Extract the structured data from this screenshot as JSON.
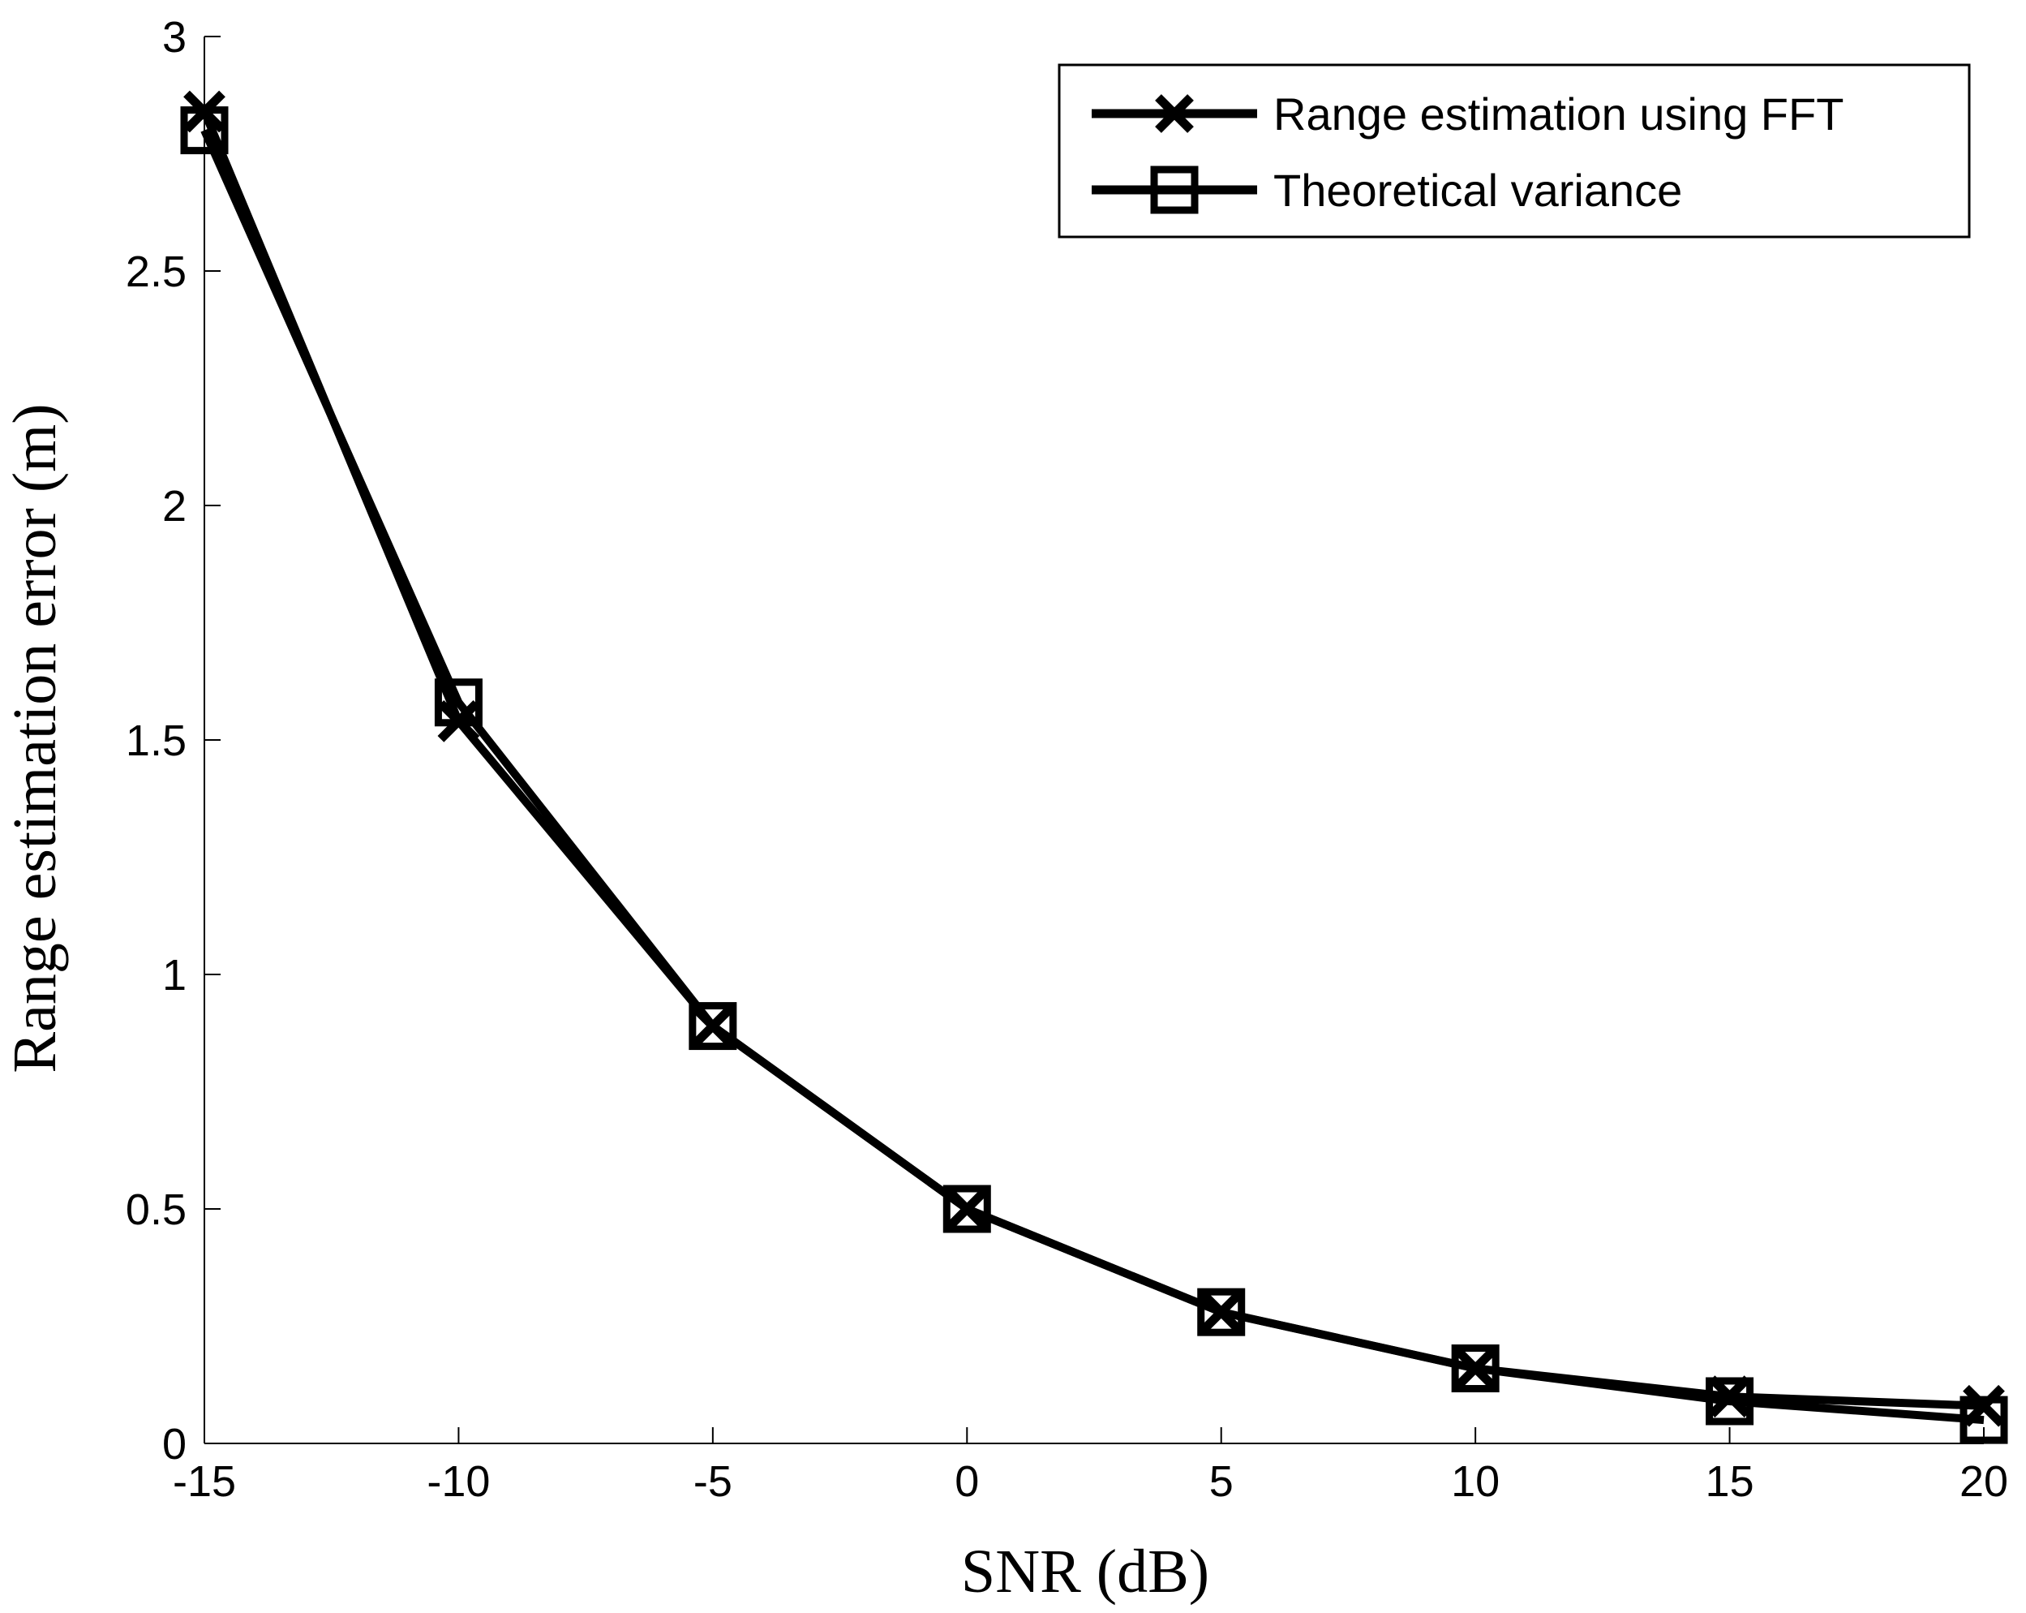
{
  "chart_data": {
    "type": "line",
    "title": "",
    "xlabel": "SNR (dB)",
    "ylabel": "Range estimation error (m)",
    "xlim": [
      -15,
      20
    ],
    "ylim": [
      0,
      3
    ],
    "xticks": [
      "-15",
      "-10",
      "-5",
      "0",
      "5",
      "10",
      "15",
      "20"
    ],
    "xtick_values": [
      -15,
      -10,
      -5,
      0,
      5,
      10,
      15,
      20
    ],
    "yticks": [
      "0",
      "0.5",
      "1",
      "1.5",
      "2",
      "2.5",
      "3"
    ],
    "ytick_values": [
      0,
      0.5,
      1,
      1.5,
      2,
      2.5,
      3
    ],
    "grid": false,
    "legend_position": "top-right",
    "x": [
      -15,
      -10,
      -5,
      0,
      5,
      10,
      15,
      20
    ],
    "series": [
      {
        "name": "Range estimation using FFT",
        "marker": "x",
        "color": "#000000",
        "values": [
          2.84,
          1.54,
          0.89,
          0.5,
          0.28,
          0.16,
          0.1,
          0.08
        ]
      },
      {
        "name": "Theoretical variance",
        "marker": "square",
        "color": "#000000",
        "values": [
          2.8,
          1.58,
          0.89,
          0.5,
          0.28,
          0.16,
          0.09,
          0.05
        ]
      }
    ]
  }
}
